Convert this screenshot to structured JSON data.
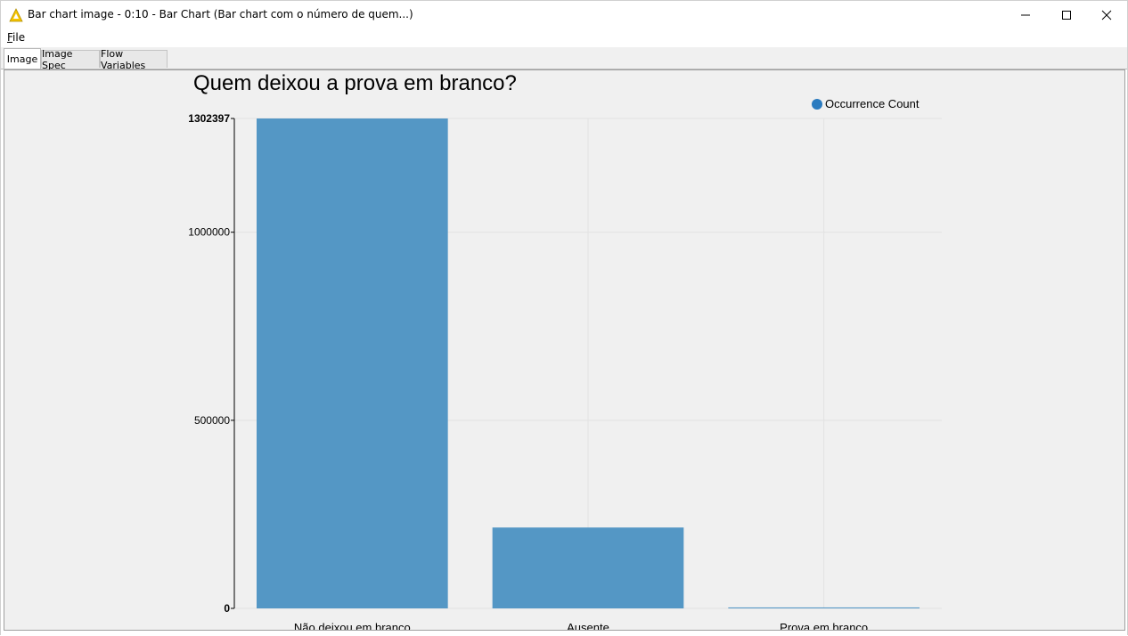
{
  "window": {
    "title": "Bar chart image - 0:10 - Bar Chart (Bar chart com o número de quem...)",
    "minimize_icon": "minimize-icon",
    "maximize_icon": "maximize-icon",
    "close_icon": "close-icon",
    "app_icon": "knime-warning-icon",
    "accent_color": "#f5c400"
  },
  "menu": {
    "file_mnemonic": "F",
    "file_rest": "ile"
  },
  "tabs": [
    {
      "label": "Image",
      "active": true
    },
    {
      "label": "Image Spec",
      "active": false
    },
    {
      "label": "Flow Variables",
      "active": false
    }
  ],
  "chart_data": {
    "type": "bar",
    "title": "Quem deixou a prova em branco?",
    "xlabel": "",
    "ylabel": "",
    "categories": [
      "Não deixou em branco",
      "Ausente",
      "Prova em branco"
    ],
    "series": [
      {
        "name": "Occurrence Count",
        "values": [
          1302397,
          215000,
          2500
        ],
        "color": "#5497c5"
      }
    ],
    "ylim": [
      0,
      1302397
    ],
    "yticks": [
      {
        "value": 0,
        "label": "0",
        "bold": true
      },
      {
        "value": 500000,
        "label": "500000",
        "bold": false
      },
      {
        "value": 1000000,
        "label": "1000000",
        "bold": false
      },
      {
        "value": 1302397,
        "label": "1302397",
        "bold": true
      }
    ],
    "grid": true,
    "legend_position": "top-right",
    "legend_marker_color": "#2b7bbf"
  }
}
